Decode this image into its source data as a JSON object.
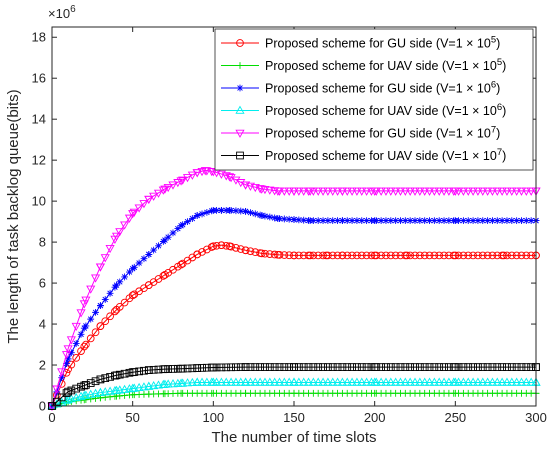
{
  "chart_data": {
    "type": "line",
    "title": "",
    "xlabel": "The number of time slots",
    "ylabel": "The length of task backlog queue(bits)",
    "y_multiplier": {
      "base": "×10",
      "exponent": "6"
    },
    "xlim": [
      0,
      300
    ],
    "ylim": [
      0,
      18.5
    ],
    "xticks": [
      0,
      50,
      100,
      150,
      200,
      250,
      300
    ],
    "yticks": [
      0,
      2,
      4,
      6,
      8,
      10,
      12,
      14,
      16,
      18
    ],
    "grid": false,
    "legend_position": "top-right",
    "series": [
      {
        "name_prefix": "Proposed scheme for GU side (V=1 × 10",
        "name_exp": "5",
        "name_suffix": ")",
        "color": "#ff0000",
        "marker": "circle",
        "x": [
          0,
          10,
          20,
          30,
          40,
          50,
          60,
          70,
          80,
          90,
          100,
          105,
          110,
          120,
          130,
          140,
          150,
          160,
          170,
          180,
          200,
          220,
          250,
          280,
          300
        ],
        "y": [
          0,
          1.8,
          2.9,
          3.9,
          4.7,
          5.4,
          5.9,
          6.4,
          6.9,
          7.4,
          7.8,
          7.85,
          7.8,
          7.6,
          7.45,
          7.38,
          7.35,
          7.35,
          7.35,
          7.35,
          7.35,
          7.35,
          7.35,
          7.35,
          7.35
        ]
      },
      {
        "name_prefix": "Proposed scheme for UAV side (V=1 × 10",
        "name_exp": "5",
        "name_suffix": ")",
        "color": "#00dd00",
        "marker": "plus",
        "x": [
          0,
          10,
          20,
          30,
          40,
          50,
          60,
          70,
          80,
          100,
          120,
          150,
          200,
          250,
          300
        ],
        "y": [
          0,
          0.2,
          0.3,
          0.4,
          0.48,
          0.55,
          0.58,
          0.6,
          0.62,
          0.62,
          0.62,
          0.62,
          0.62,
          0.62,
          0.62
        ]
      },
      {
        "name_prefix": "Proposed scheme for GU side (V=1 × 10",
        "name_exp": "6",
        "name_suffix": ")",
        "color": "#0000ff",
        "marker": "asterisk",
        "x": [
          0,
          10,
          20,
          30,
          40,
          50,
          60,
          70,
          80,
          90,
          100,
          105,
          110,
          120,
          130,
          140,
          150,
          160,
          180,
          200,
          250,
          300
        ],
        "y": [
          0,
          2.3,
          3.8,
          4.9,
          5.9,
          6.7,
          7.4,
          8.1,
          8.8,
          9.3,
          9.55,
          9.55,
          9.55,
          9.5,
          9.3,
          9.15,
          9.1,
          9.05,
          9.05,
          9.05,
          9.05,
          9.05
        ]
      },
      {
        "name_prefix": "Proposed scheme for UAV side (V=1 × 10",
        "name_exp": "6",
        "name_suffix": ")",
        "color": "#00eeee",
        "marker": "triangle-up",
        "x": [
          0,
          10,
          20,
          30,
          40,
          50,
          60,
          70,
          80,
          90,
          100,
          120,
          150,
          200,
          250,
          300
        ],
        "y": [
          0,
          0.3,
          0.5,
          0.65,
          0.75,
          0.85,
          0.95,
          1.05,
          1.1,
          1.15,
          1.15,
          1.15,
          1.15,
          1.15,
          1.15,
          1.15
        ]
      },
      {
        "name_prefix": "Proposed scheme for GU side (V=1 × 10",
        "name_exp": "7",
        "name_suffix": ")",
        "color": "#ff00ff",
        "marker": "triangle-down",
        "x": [
          0,
          10,
          20,
          30,
          40,
          50,
          60,
          70,
          80,
          90,
          95,
          100,
          110,
          120,
          130,
          140,
          150,
          160,
          180,
          200,
          250,
          300
        ],
        "y": [
          0,
          2.8,
          5.0,
          6.8,
          8.3,
          9.4,
          10.1,
          10.6,
          11.0,
          11.4,
          11.5,
          11.45,
          11.2,
          10.8,
          10.6,
          10.5,
          10.5,
          10.5,
          10.5,
          10.5,
          10.5,
          10.5
        ]
      },
      {
        "name_prefix": "Proposed scheme for UAV side (V=1 × 10",
        "name_exp": "7",
        "name_suffix": ")",
        "color": "#000000",
        "marker": "square",
        "x": [
          0,
          10,
          20,
          30,
          40,
          50,
          60,
          70,
          80,
          90,
          100,
          120,
          150,
          200,
          250,
          300
        ],
        "y": [
          0,
          0.7,
          1.0,
          1.3,
          1.5,
          1.65,
          1.75,
          1.8,
          1.82,
          1.85,
          1.88,
          1.9,
          1.9,
          1.9,
          1.9,
          1.9
        ]
      }
    ]
  }
}
